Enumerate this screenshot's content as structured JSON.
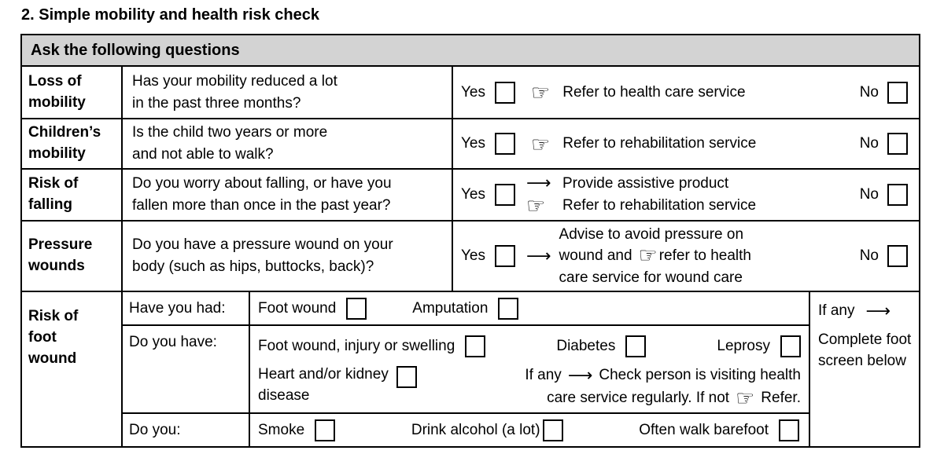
{
  "title": "2. Simple mobility and health risk check",
  "colors": {
    "header_bg": "#d3d3d3",
    "border": "#000000",
    "text": "#000000"
  },
  "icons": {
    "pointing_hand": "☞",
    "right_arrow": "⟶"
  },
  "table": {
    "header": "Ask the following questions",
    "yes_label": "Yes",
    "no_label": "No",
    "rows": [
      {
        "label": "Loss of mobility",
        "question": [
          "Has your mobility reduced a lot",
          "in the past three months?"
        ],
        "action": "Refer to health care service"
      },
      {
        "label": "Children’s mobility",
        "question": [
          "Is the child two years or more",
          "and not able to walk?"
        ],
        "action": "Refer to rehabilitation service"
      },
      {
        "label": "Risk of falling",
        "question": [
          "Do you worry about falling, or have you",
          "fallen more than once in the past year?"
        ],
        "action_lines": [
          {
            "icon": "right-arrow",
            "text": "Provide assistive product"
          },
          {
            "icon": "pointing-hand",
            "text": "Refer to rehabilitation service"
          }
        ]
      },
      {
        "label": "Pressure wounds",
        "question": [
          "Do you have a pressure wound on your",
          "body (such as hips, buttocks, back)?"
        ],
        "action": {
          "line1": "Advise to avoid pressure on",
          "line2_before_icon": "wound and",
          "line2_after_icon": "refer to health",
          "line3": "care service for wound care"
        }
      }
    ],
    "foot": {
      "label": "Risk of foot wound",
      "sub_rows": [
        {
          "prompt": "Have you had:",
          "items": [
            "Foot wound",
            "Amputation"
          ]
        },
        {
          "prompt": "Do you have:",
          "items_line1": [
            "Foot wound, injury or swelling",
            "Diabetes",
            "Leprosy"
          ],
          "item_line2": "Heart and/or kidney disease",
          "note": {
            "line1_prefix": "If any",
            "line1_text": "Check person is visiting health",
            "line2_text": "care service regularly. If not",
            "line2_suffix": "Refer."
          }
        },
        {
          "prompt": "Do you:",
          "items": [
            "Smoke",
            "Drink alcohol (a lot)",
            "Often walk barefoot"
          ]
        }
      ],
      "if_any": {
        "prefix": "If any",
        "text": "Complete foot screen below"
      }
    }
  }
}
